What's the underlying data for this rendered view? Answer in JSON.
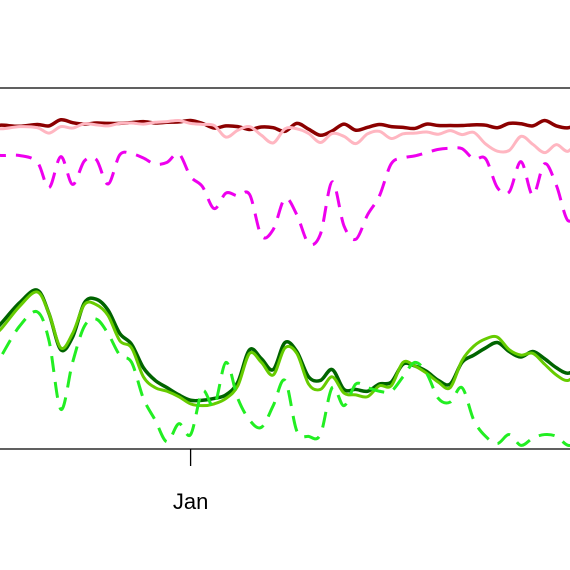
{
  "chart_data": {
    "type": "line",
    "title": "",
    "xlabel": "",
    "ylabel": "",
    "x_tick_labels": [
      "Jan"
    ],
    "x_tick_positions": [
      0.34
    ],
    "x_range": [
      0,
      1
    ],
    "y_range": [
      0,
      100
    ],
    "grid": false,
    "legend": "none",
    "series": [
      {
        "color": "#8b0000",
        "dash": "solid",
        "width": 3.5,
        "x": [
          0.0,
          0.02,
          0.05,
          0.08,
          0.1,
          0.12,
          0.14,
          0.16,
          0.18,
          0.2,
          0.22,
          0.24,
          0.26,
          0.28,
          0.3,
          0.32,
          0.34,
          0.36,
          0.38,
          0.4,
          0.42,
          0.44,
          0.46,
          0.48,
          0.5,
          0.52,
          0.54,
          0.56,
          0.58,
          0.6,
          0.62,
          0.64,
          0.66,
          0.68,
          0.7,
          0.72,
          0.74,
          0.76,
          0.78,
          0.8,
          0.82,
          0.84,
          0.86,
          0.88,
          0.9,
          0.92,
          0.94,
          0.96,
          0.98,
          1.0
        ],
        "y": [
          89.5,
          89.7,
          89.4,
          89.9,
          89.5,
          91.2,
          90.4,
          90.0,
          90.3,
          90.2,
          90.2,
          90.4,
          90.7,
          90.3,
          90.5,
          90.6,
          91.0,
          90.2,
          88.9,
          89.5,
          89.3,
          88.5,
          89.2,
          89.0,
          88.0,
          90.2,
          88.6,
          86.9,
          88.1,
          90.0,
          88.3,
          89.1,
          89.9,
          89.3,
          89.1,
          88.8,
          90.0,
          89.6,
          89.6,
          89.6,
          89.8,
          89.7,
          89.0,
          90.2,
          90.1,
          89.5,
          91.0,
          89.5,
          89.0,
          90.4
        ]
      },
      {
        "color": "#ffb6c1",
        "dash": "solid",
        "width": 3.0,
        "x": [
          0.0,
          0.02,
          0.05,
          0.08,
          0.1,
          0.12,
          0.14,
          0.16,
          0.18,
          0.2,
          0.22,
          0.24,
          0.26,
          0.28,
          0.3,
          0.32,
          0.34,
          0.36,
          0.38,
          0.4,
          0.42,
          0.44,
          0.46,
          0.48,
          0.5,
          0.52,
          0.54,
          0.56,
          0.58,
          0.6,
          0.62,
          0.64,
          0.66,
          0.68,
          0.7,
          0.72,
          0.74,
          0.76,
          0.78,
          0.8,
          0.82,
          0.84,
          0.86,
          0.88,
          0.9,
          0.92,
          0.94,
          0.96,
          0.98,
          1.0
        ],
        "y": [
          89.3,
          88.7,
          89.3,
          89.0,
          87.5,
          89.3,
          88.9,
          90.1,
          89.8,
          89.5,
          90.2,
          90.3,
          90.0,
          90.5,
          90.7,
          91.0,
          90.2,
          89.9,
          89.6,
          86.4,
          88.3,
          89.3,
          86.9,
          84.8,
          88.7,
          88.7,
          87.4,
          84.9,
          87.4,
          86.6,
          84.6,
          87.3,
          88.0,
          86.0,
          87.3,
          87.5,
          87.8,
          87.2,
          88.2,
          87.1,
          87.7,
          84.5,
          82.5,
          82.7,
          86.6,
          84.4,
          82.1,
          84.3,
          82.5,
          86.7
        ]
      },
      {
        "color": "#ee00ee",
        "dash": "dashed",
        "width": 3.0,
        "x": [
          0.0,
          0.02,
          0.05,
          0.08,
          0.1,
          0.12,
          0.14,
          0.16,
          0.18,
          0.2,
          0.22,
          0.24,
          0.26,
          0.28,
          0.3,
          0.32,
          0.34,
          0.36,
          0.38,
          0.4,
          0.42,
          0.44,
          0.46,
          0.48,
          0.5,
          0.52,
          0.54,
          0.56,
          0.58,
          0.6,
          0.62,
          0.64,
          0.66,
          0.68,
          0.7,
          0.72,
          0.74,
          0.76,
          0.78,
          0.8,
          0.82,
          0.84,
          0.86,
          0.88,
          0.9,
          0.92,
          0.94,
          0.96,
          0.98,
          1.0
        ],
        "y": [
          81.7,
          81.3,
          81.3,
          79.5,
          72.4,
          81.0,
          73.3,
          79.8,
          80.2,
          73.4,
          81.5,
          81.8,
          80.6,
          78.9,
          79.4,
          81.8,
          75.5,
          72.7,
          66.6,
          70.9,
          70.1,
          70.5,
          59.1,
          60.8,
          69.4,
          64.9,
          57.0,
          59.5,
          74.0,
          61.8,
          58.1,
          64.9,
          70.1,
          79.0,
          80.6,
          81.2,
          82.1,
          83.0,
          83.3,
          83.2,
          80.3,
          80.4,
          72.4,
          71.2,
          79.6,
          70.3,
          79.0,
          73.0,
          63.2,
          67.9
        ]
      },
      {
        "color": "#006400",
        "dash": "solid",
        "width": 3.5,
        "x": [
          0.0,
          0.02,
          0.05,
          0.08,
          0.1,
          0.12,
          0.14,
          0.16,
          0.18,
          0.2,
          0.22,
          0.24,
          0.26,
          0.28,
          0.3,
          0.32,
          0.34,
          0.36,
          0.38,
          0.4,
          0.42,
          0.44,
          0.46,
          0.48,
          0.5,
          0.52,
          0.54,
          0.56,
          0.58,
          0.6,
          0.62,
          0.64,
          0.66,
          0.68,
          0.7,
          0.72,
          0.74,
          0.76,
          0.78,
          0.8,
          0.82,
          0.84,
          0.86,
          0.88,
          0.9,
          0.92,
          0.94,
          0.96,
          0.98,
          1.0
        ],
        "y": [
          31.5,
          35.0,
          40.5,
          44.0,
          37.5,
          27.5,
          31.0,
          40.5,
          41.5,
          38.5,
          32.0,
          29.0,
          22.5,
          19.0,
          17.0,
          15.0,
          13.5,
          13.5,
          14.0,
          15.0,
          18.5,
          27.5,
          25.0,
          22.0,
          29.5,
          27.0,
          20.0,
          19.0,
          22.0,
          16.5,
          16.5,
          16.0,
          18.0,
          18.5,
          23.5,
          23.0,
          21.5,
          19.0,
          18.0,
          24.0,
          26.0,
          28.0,
          29.5,
          27.0,
          25.5,
          27.0,
          25.0,
          22.5,
          21.0,
          23.0
        ]
      },
      {
        "color": "#66cc00",
        "dash": "solid",
        "width": 3.0,
        "x": [
          0.0,
          0.02,
          0.05,
          0.08,
          0.1,
          0.12,
          0.14,
          0.16,
          0.18,
          0.2,
          0.22,
          0.24,
          0.26,
          0.28,
          0.3,
          0.32,
          0.34,
          0.36,
          0.38,
          0.4,
          0.42,
          0.44,
          0.46,
          0.48,
          0.5,
          0.52,
          0.54,
          0.56,
          0.58,
          0.6,
          0.62,
          0.64,
          0.66,
          0.68,
          0.7,
          0.72,
          0.74,
          0.76,
          0.78,
          0.8,
          0.82,
          0.84,
          0.86,
          0.88,
          0.9,
          0.92,
          0.94,
          0.96,
          0.98,
          1.0
        ],
        "y": [
          30.5,
          33.5,
          39.5,
          43.5,
          37.5,
          28.0,
          32.0,
          40.0,
          40.0,
          37.0,
          30.0,
          28.0,
          20.0,
          17.0,
          16.0,
          14.5,
          12.5,
          12.0,
          12.5,
          14.0,
          17.5,
          26.5,
          24.0,
          20.5,
          28.0,
          26.5,
          18.0,
          16.5,
          20.0,
          15.5,
          15.0,
          14.5,
          17.5,
          17.5,
          24.0,
          23.0,
          21.0,
          18.5,
          17.0,
          24.5,
          28.5,
          30.5,
          31.0,
          27.5,
          26.0,
          26.5,
          23.5,
          20.5,
          19.0,
          22.0
        ]
      },
      {
        "color": "#22ee22",
        "dash": "dashed",
        "width": 3.0,
        "x": [
          0.0,
          0.02,
          0.05,
          0.08,
          0.1,
          0.12,
          0.14,
          0.16,
          0.18,
          0.2,
          0.22,
          0.24,
          0.26,
          0.28,
          0.3,
          0.32,
          0.34,
          0.36,
          0.38,
          0.4,
          0.42,
          0.44,
          0.46,
          0.48,
          0.5,
          0.52,
          0.54,
          0.56,
          0.58,
          0.6,
          0.62,
          0.64,
          0.66,
          0.68,
          0.7,
          0.72,
          0.74,
          0.76,
          0.78,
          0.8,
          0.82,
          0.84,
          0.86,
          0.88,
          0.9,
          0.92,
          0.94,
          0.96,
          0.98,
          1.0
        ],
        "y": [
          20.0,
          26.0,
          34.0,
          38.0,
          30.0,
          11.0,
          24.0,
          34.0,
          36.0,
          32.0,
          26.0,
          24.0,
          14.0,
          8.0,
          2.0,
          7.0,
          4.0,
          16.0,
          12.0,
          24.0,
          14.0,
          8.0,
          6.0,
          12.0,
          19.0,
          5.0,
          3.5,
          4.0,
          17.0,
          12.0,
          18.0,
          17.0,
          16.0,
          16.0,
          20.0,
          24.0,
          21.0,
          14.0,
          13.0,
          17.0,
          8.0,
          3.5,
          1.5,
          4.0,
          1.0,
          3.0,
          4.0,
          3.5,
          1.0,
          2.0
        ]
      }
    ]
  }
}
